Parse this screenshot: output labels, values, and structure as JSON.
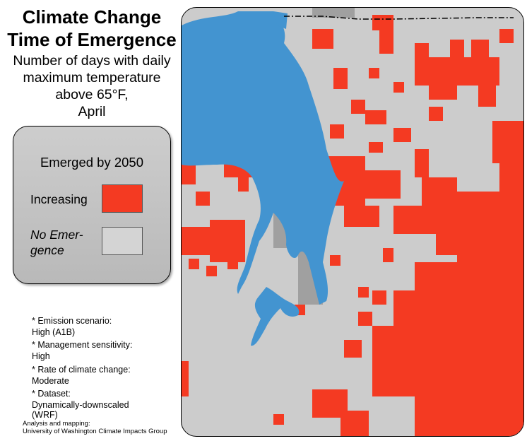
{
  "title": {
    "line1": "Climate Change",
    "line2": "Time of Emergence"
  },
  "subtitle": {
    "line1": "Number of days with daily",
    "line2": "maximum temperature",
    "line3": "above 65°F,",
    "line4": "April"
  },
  "legend": {
    "title": "Emerged by 2050",
    "items": [
      {
        "label": "Increasing",
        "color": "#f43a22"
      },
      {
        "label_line1": "No Emer-",
        "label_line2": "gence",
        "color": "#d4d4d4"
      }
    ]
  },
  "notes": [
    {
      "label": "* Emission scenario:",
      "value": "High (A1B)"
    },
    {
      "label": "* Management sensitivity:",
      "value": "High"
    },
    {
      "label": "* Rate of climate change:",
      "value": "Moderate"
    },
    {
      "label": "* Dataset:",
      "value_line1": "Dynamically-downscaled",
      "value_line2": "(WRF)"
    }
  ],
  "credit": {
    "line1": "Analysis and mapping:",
    "line2": "University of Washington Climate Impacts Group"
  },
  "colors": {
    "increasing": "#f43a22",
    "no_emergence": "#cccccc",
    "water": "#4394d0",
    "land_outside": "#a0a0a0"
  }
}
